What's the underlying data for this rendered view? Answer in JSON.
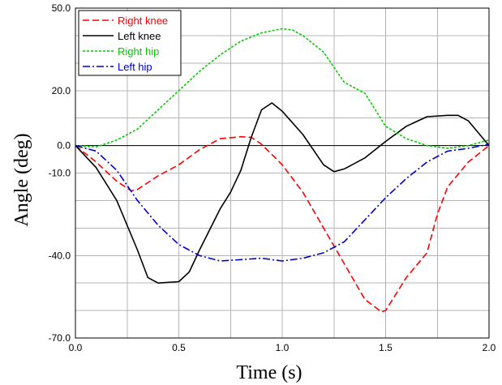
{
  "chart_data": {
    "type": "line",
    "xlabel": "Time (s)",
    "ylabel": "Angle (deg)",
    "xlim": [
      0,
      2.0
    ],
    "ylim": [
      -70,
      50
    ],
    "x_ticks": [
      0.0,
      0.5,
      1.0,
      1.5,
      2.0
    ],
    "x_tick_labels": [
      "0.0",
      "0.5",
      "1.0",
      "1.5",
      "2.0"
    ],
    "y_ticks": [
      50,
      20,
      0,
      -10,
      -40,
      -70
    ],
    "y_tick_labels": [
      "50.0",
      "20.0",
      "0.0",
      "-10.0",
      "-40.0",
      "-70.0"
    ],
    "grid": true,
    "zero_line": true,
    "legend_position": "top-left",
    "series": [
      {
        "name": "Right knee",
        "color": "#ff0000",
        "dash": "dashed",
        "points": [
          [
            0,
            0
          ],
          [
            0.1,
            -6
          ],
          [
            0.2,
            -13
          ],
          [
            0.27,
            -16.5
          ],
          [
            0.3,
            -16
          ],
          [
            0.4,
            -11
          ],
          [
            0.5,
            -7
          ],
          [
            0.6,
            -1.5
          ],
          [
            0.7,
            2.5
          ],
          [
            0.8,
            3.2
          ],
          [
            0.85,
            3
          ],
          [
            0.9,
            0.5
          ],
          [
            1.0,
            -7
          ],
          [
            1.1,
            -17
          ],
          [
            1.2,
            -30
          ],
          [
            1.3,
            -43
          ],
          [
            1.4,
            -56
          ],
          [
            1.48,
            -60.5
          ],
          [
            1.5,
            -60
          ],
          [
            1.6,
            -48
          ],
          [
            1.7,
            -39
          ],
          [
            1.75,
            -25
          ],
          [
            1.8,
            -15
          ],
          [
            1.9,
            -6
          ],
          [
            2.0,
            0
          ]
        ]
      },
      {
        "name": "Left knee",
        "color": "#000000",
        "dash": "solid",
        "points": [
          [
            0,
            0
          ],
          [
            0.1,
            -8
          ],
          [
            0.2,
            -20
          ],
          [
            0.3,
            -38
          ],
          [
            0.35,
            -48
          ],
          [
            0.4,
            -50
          ],
          [
            0.5,
            -49.5
          ],
          [
            0.55,
            -46
          ],
          [
            0.6,
            -38
          ],
          [
            0.7,
            -23
          ],
          [
            0.75,
            -17
          ],
          [
            0.8,
            -9
          ],
          [
            0.85,
            3
          ],
          [
            0.9,
            13
          ],
          [
            0.95,
            15.5
          ],
          [
            1.0,
            12.5
          ],
          [
            1.1,
            4
          ],
          [
            1.2,
            -7
          ],
          [
            1.25,
            -9.5
          ],
          [
            1.3,
            -8.5
          ],
          [
            1.4,
            -4.5
          ],
          [
            1.5,
            1.5
          ],
          [
            1.6,
            7
          ],
          [
            1.7,
            10.5
          ],
          [
            1.8,
            11
          ],
          [
            1.85,
            11
          ],
          [
            1.9,
            9
          ],
          [
            2.0,
            0
          ]
        ]
      },
      {
        "name": "Right hip",
        "color": "#00cc00",
        "dash": "dotted",
        "points": [
          [
            0,
            0
          ],
          [
            0.1,
            -0.5
          ],
          [
            0.2,
            2
          ],
          [
            0.3,
            6
          ],
          [
            0.4,
            13
          ],
          [
            0.5,
            20
          ],
          [
            0.6,
            27
          ],
          [
            0.7,
            33
          ],
          [
            0.8,
            38
          ],
          [
            0.9,
            41
          ],
          [
            1.0,
            42.5
          ],
          [
            1.05,
            42
          ],
          [
            1.1,
            40
          ],
          [
            1.2,
            34
          ],
          [
            1.3,
            23
          ],
          [
            1.4,
            19
          ],
          [
            1.45,
            13
          ],
          [
            1.5,
            7
          ],
          [
            1.6,
            2.5
          ],
          [
            1.7,
            0
          ],
          [
            1.8,
            -1
          ],
          [
            1.9,
            0
          ],
          [
            2.0,
            2
          ]
        ]
      },
      {
        "name": "Left hip",
        "color": "#0000cc",
        "dash": "dashdot",
        "points": [
          [
            0,
            0
          ],
          [
            0.1,
            -2
          ],
          [
            0.2,
            -9
          ],
          [
            0.3,
            -20
          ],
          [
            0.4,
            -29
          ],
          [
            0.5,
            -36
          ],
          [
            0.6,
            -40
          ],
          [
            0.7,
            -42
          ],
          [
            0.8,
            -41.5
          ],
          [
            0.9,
            -41
          ],
          [
            1.0,
            -42
          ],
          [
            1.1,
            -41
          ],
          [
            1.2,
            -39
          ],
          [
            1.3,
            -35
          ],
          [
            1.4,
            -27
          ],
          [
            1.5,
            -19
          ],
          [
            1.6,
            -12
          ],
          [
            1.7,
            -6
          ],
          [
            1.8,
            -2
          ],
          [
            1.9,
            -1
          ],
          [
            2.0,
            0.5
          ]
        ]
      }
    ]
  }
}
